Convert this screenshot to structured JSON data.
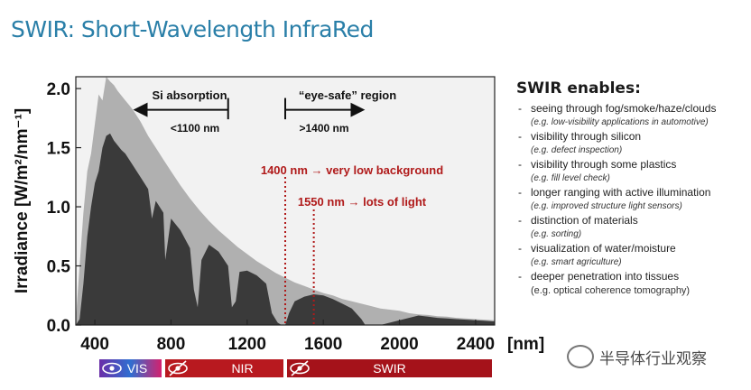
{
  "title": "SWIR: Short-Wavelength InfraRed",
  "chart_data": {
    "type": "area",
    "xlabel": "[nm]",
    "ylabel": "Irradiance [W/m²/nm⁻¹]",
    "xlim": [
      300,
      2500
    ],
    "ylim": [
      0,
      2.1
    ],
    "xticks": [
      "400",
      "800",
      "1200",
      "1600",
      "2000",
      "2400"
    ],
    "yticks": [
      "0.0",
      "0.5",
      "1.0",
      "1.5",
      "2.0"
    ],
    "series": [
      {
        "color": "#b0b0b0",
        "x": [
          300,
          320,
          340,
          360,
          380,
          400,
          420,
          440,
          460,
          480,
          500,
          520,
          540,
          560,
          580,
          600,
          640,
          680,
          720,
          760,
          800,
          850,
          900,
          950,
          1000,
          1050,
          1100,
          1150,
          1200,
          1250,
          1300,
          1350,
          1400,
          1450,
          1500,
          1550,
          1600,
          1650,
          1700,
          1750,
          1800,
          1850,
          1900,
          1950,
          2000,
          2050,
          2100,
          2150,
          2200,
          2250,
          2300,
          2350,
          2400,
          2450,
          2500
        ],
        "y": [
          0.05,
          0.5,
          0.95,
          1.3,
          1.45,
          1.7,
          1.95,
          1.9,
          2.1,
          2.06,
          2.03,
          1.98,
          1.94,
          1.9,
          1.86,
          1.82,
          1.72,
          1.6,
          1.5,
          1.4,
          1.3,
          1.18,
          1.07,
          0.97,
          0.88,
          0.8,
          0.73,
          0.66,
          0.6,
          0.54,
          0.49,
          0.44,
          0.4,
          0.36,
          0.33,
          0.3,
          0.27,
          0.25,
          0.22,
          0.2,
          0.18,
          0.16,
          0.14,
          0.13,
          0.12,
          0.1,
          0.09,
          0.085,
          0.075,
          0.07,
          0.06,
          0.055,
          0.05,
          0.045,
          0.04
        ]
      },
      {
        "color": "#3a3a3a",
        "x": [
          300,
          320,
          340,
          360,
          380,
          400,
          420,
          440,
          460,
          480,
          500,
          520,
          540,
          560,
          580,
          600,
          640,
          680,
          700,
          720,
          760,
          770,
          800,
          850,
          900,
          920,
          940,
          960,
          1000,
          1050,
          1100,
          1120,
          1140,
          1160,
          1200,
          1250,
          1300,
          1330,
          1360,
          1380,
          1400,
          1420,
          1450,
          1500,
          1550,
          1600,
          1650,
          1700,
          1750,
          1800,
          1820,
          1850,
          1900,
          1950,
          2000,
          2050,
          2100,
          2150,
          2200,
          2250,
          2300,
          2350,
          2400,
          2450,
          2500
        ],
        "y": [
          0.0,
          0.05,
          0.35,
          0.75,
          1.0,
          1.2,
          1.3,
          1.5,
          1.6,
          1.62,
          1.56,
          1.52,
          1.48,
          1.45,
          1.4,
          1.35,
          1.25,
          1.15,
          0.9,
          1.05,
          0.95,
          0.55,
          0.9,
          0.8,
          0.65,
          0.3,
          0.15,
          0.55,
          0.68,
          0.62,
          0.5,
          0.15,
          0.2,
          0.45,
          0.46,
          0.42,
          0.35,
          0.1,
          0.02,
          0.0,
          0.0,
          0.1,
          0.2,
          0.24,
          0.26,
          0.25,
          0.22,
          0.18,
          0.14,
          0.05,
          0.0,
          0.0,
          0.0,
          0.02,
          0.04,
          0.06,
          0.08,
          0.07,
          0.06,
          0.055,
          0.05,
          0.045,
          0.04,
          0.035,
          0.03
        ]
      }
    ],
    "annotations": [
      {
        "text": "Si absorption",
        "x": 1100,
        "y": 1.93
      },
      {
        "text": "<1100 nm",
        "arrow_from": 1100,
        "arrow_to": 620,
        "y": 1.82
      },
      {
        "text": "“eye-safe” region",
        "x": 1400,
        "y": 1.93
      },
      {
        "text": ">1400 nm",
        "arrow_from": 1400,
        "arrow_to": 1800,
        "y": 1.82
      },
      {
        "text": "1400 nm → very low background",
        "x": 1400,
        "color": "#b01a1a"
      },
      {
        "text": "1550 nm → lots of light",
        "x": 1550,
        "color": "#b01a1a"
      }
    ],
    "bands": [
      {
        "label": "VIS",
        "from": 380,
        "to": 760,
        "colors": [
          "#6a2da8",
          "#d4216e"
        ]
      },
      {
        "label": "NIR",
        "from": 760,
        "to": 1400,
        "colors": [
          "#b8191f"
        ]
      },
      {
        "label": "SWIR",
        "from": 1400,
        "to": 2500,
        "colors": [
          "#a5121a"
        ]
      }
    ]
  },
  "side": {
    "heading": "SWIR enables:",
    "items": [
      {
        "main": "seeing through fog/smoke/haze/clouds",
        "ex": "(e.g. low-visibility applications in automotive)"
      },
      {
        "main": "visibility through silicon",
        "ex": "(e.g. defect inspection)"
      },
      {
        "main": "visibility through some plastics",
        "ex": "(e.g. fill level check)"
      },
      {
        "main": "longer ranging with active illumination",
        "ex": "(e.g. improved structure light sensors)"
      },
      {
        "main": "distinction of materials",
        "ex": "(e.g. sorting)"
      },
      {
        "main": "visualization of water/moisture",
        "ex": "(e.g. smart agriculture)"
      },
      {
        "main": "deeper penetration into tissues",
        "ex": "(e.g. optical coherence tomography)"
      }
    ]
  },
  "watermark": "半导体行业观察"
}
